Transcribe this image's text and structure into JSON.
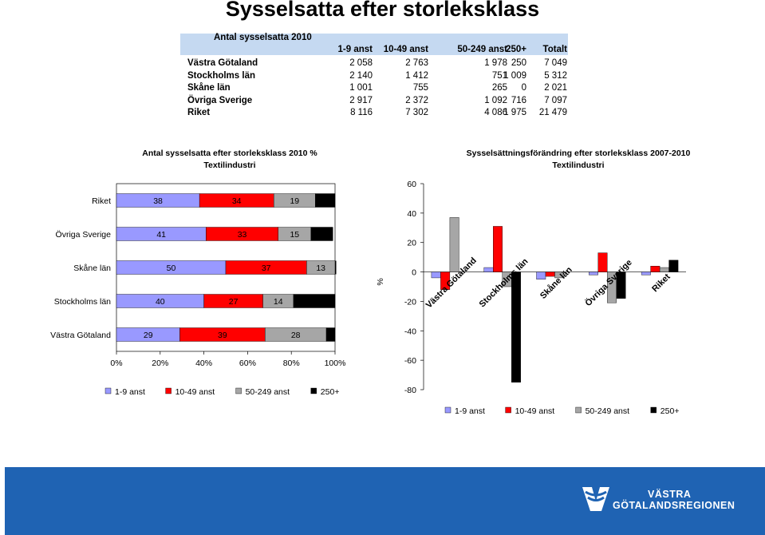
{
  "title": "Sysselsatta efter storleksklass",
  "table": {
    "caption": "Antal sysselsatta 2010",
    "columns": [
      "1-9 anst",
      "10-49 anst",
      "50-249 anst",
      "250+",
      "Totalt"
    ],
    "rows": [
      {
        "label": "Västra Götaland",
        "values": [
          "2 058",
          "2 763",
          "1 978",
          "250",
          "7 049"
        ]
      },
      {
        "label": "Stockholms län",
        "values": [
          "2 140",
          "1 412",
          "751",
          "1 009",
          "5 312"
        ]
      },
      {
        "label": "Skåne län",
        "values": [
          "1 001",
          "755",
          "265",
          "0",
          "2 021"
        ]
      },
      {
        "label": "Övriga Sverige",
        "values": [
          "2 917",
          "2 372",
          "1 092",
          "716",
          "7 097"
        ]
      },
      {
        "label": "Riket",
        "values": [
          "8 116",
          "7 302",
          "4 086",
          "1 975",
          "21 479"
        ]
      }
    ]
  },
  "chart_data": [
    {
      "type": "bar",
      "orientation": "horizontal",
      "stacked": "percent",
      "title": "Antal sysselsatta efter storleksklass 2010 %",
      "subtitle": "Textilindustri",
      "categories": [
        "Riket",
        "Övriga Sverige",
        "Skåne län",
        "Stockholms län",
        "Västra Götaland"
      ],
      "series": [
        {
          "name": "1-9 anst",
          "values": [
            38,
            41,
            50,
            40,
            29
          ],
          "color": "#9999ff"
        },
        {
          "name": "10-49 anst",
          "values": [
            34,
            33,
            37,
            27,
            39
          ],
          "color": "#ff0000"
        },
        {
          "name": "50-249 anst",
          "values": [
            19,
            15,
            13,
            14,
            28
          ],
          "color": "#a6a6a6"
        },
        {
          "name": "250+",
          "values": [
            9,
            10,
            0,
            19,
            4
          ],
          "color": "#000000"
        }
      ],
      "data_labels": [
        [
          "38",
          "34",
          "19",
          "9"
        ],
        [
          "41",
          "33",
          "15",
          "10"
        ],
        [
          "50",
          "37",
          "13",
          "0"
        ],
        [
          "40",
          "27",
          "14",
          "19"
        ],
        [
          "29",
          "39",
          "28",
          "4"
        ]
      ],
      "xaxis_ticks": [
        "0%",
        "20%",
        "40%",
        "60%",
        "80%",
        "100%"
      ],
      "xlim": [
        0,
        100
      ],
      "legend": "bottom"
    },
    {
      "type": "bar",
      "title": "Sysselsättningsförändring efter storleksklass 2007-2010",
      "subtitle": "Textilindustri",
      "ylabel": "%",
      "categories": [
        "Västra Götaland",
        "Stockholms län",
        "Skåne län",
        "Övriga Sverige",
        "Riket"
      ],
      "series": [
        {
          "name": "1-9 anst",
          "values": [
            -4,
            3,
            -5,
            -2,
            -2
          ],
          "color": "#9999ff"
        },
        {
          "name": "10-49 anst",
          "values": [
            -12,
            31,
            -3,
            13,
            4
          ],
          "color": "#ff0000"
        },
        {
          "name": "50-249 anst",
          "values": [
            37,
            -10,
            -4,
            -21,
            3
          ],
          "color": "#a6a6a6"
        },
        {
          "name": "250+",
          "values": [
            0,
            -75,
            0,
            -18,
            8
          ],
          "color": "#000000"
        }
      ],
      "ylim": [
        -80,
        60
      ],
      "yaxis_ticks": [
        "60",
        "40",
        "20",
        "0",
        "-20",
        "-40",
        "-60",
        "-80"
      ],
      "legend": "bottom"
    }
  ],
  "logo": {
    "line1": "VÄSTRA",
    "line2": "GÖTALANDSREGIONEN"
  }
}
